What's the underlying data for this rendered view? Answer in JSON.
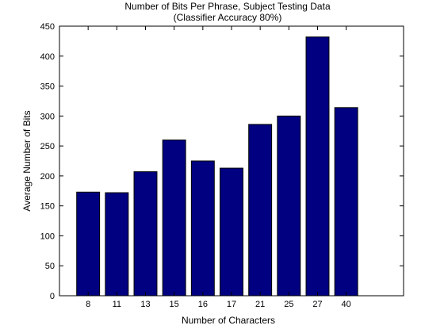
{
  "chart_data": {
    "type": "bar",
    "title": [
      "Number of Bits Per Phrase, Subject Testing Data",
      "(Classifier Accuracy 80%)"
    ],
    "xlabel": "Number of Characters",
    "ylabel": "Average Number of Bits",
    "categories": [
      "8",
      "11",
      "13",
      "15",
      "16",
      "17",
      "21",
      "25",
      "27",
      "40"
    ],
    "values": [
      173,
      172,
      207,
      260,
      225,
      213,
      286,
      300,
      432,
      314
    ],
    "ylim": [
      0,
      450
    ],
    "yticks": [
      0,
      50,
      100,
      150,
      200,
      250,
      300,
      350,
      400,
      450
    ],
    "xlim": [
      0,
      12
    ],
    "grid": false,
    "bar_color": "#000080",
    "bar_edge_color": "#000000"
  }
}
